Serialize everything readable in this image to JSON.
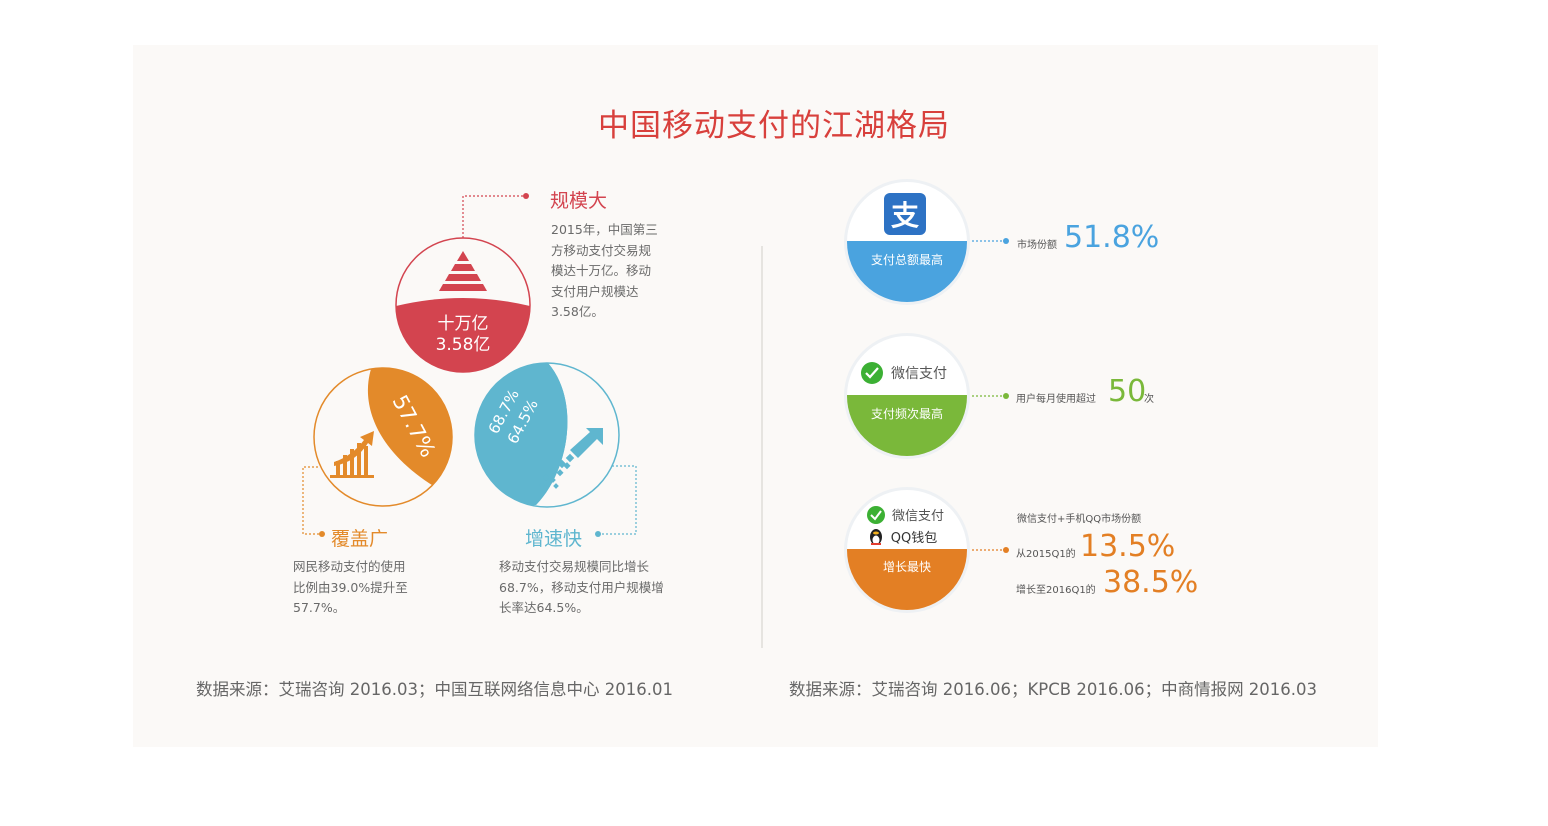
{
  "title": "中国移动支付的江湖格局",
  "left": {
    "scale": {
      "heading": "规模大",
      "desc": [
        "2015年，中国第三",
        "方移动支付交易规",
        "模达十万亿。移动",
        "支付用户规模达",
        "3.58亿。"
      ],
      "circle_line1": "十万亿",
      "circle_line2": "3.58亿"
    },
    "coverage": {
      "heading": "覆盖广",
      "desc": [
        "网民移动支付的使用",
        "比例由39.0%提升至",
        "57.7%。"
      ],
      "circle_value": "57.7%"
    },
    "growth": {
      "heading": "增速快",
      "desc": [
        "移动支付交易规模同比增长",
        "68.7%，移动支付用户规模增",
        "长率达64.5%。"
      ],
      "circle_value1": "68.7%",
      "circle_value2": "64.5%"
    },
    "source": "数据来源：艾瑞咨询 2016.03；中国互联网络信息中心 2016.01"
  },
  "right": {
    "alipay": {
      "band": "支付总额最高",
      "label": "市场份额",
      "value": "51.8%",
      "icon_char": "支"
    },
    "wechat": {
      "brand": "微信支付",
      "band": "支付频次最高",
      "label": "用户每月使用超过",
      "value": "50",
      "unit": "次"
    },
    "combo": {
      "brand1": "微信支付",
      "brand2": "QQ钱包",
      "band": "增长最快",
      "header": "微信支付+手机QQ市场份额",
      "from_label": "从2015Q1的",
      "from_value": "13.5%",
      "to_label": "增长至2016Q1的",
      "to_value": "38.5%"
    },
    "source": "数据来源：艾瑞咨询 2016.06；KPCB  2016.06；中商情报网 2016.03"
  },
  "colors": {
    "title": "#d8403c",
    "red": "#d3444f",
    "orange": "#e38a2a",
    "teal": "#5fb6cf",
    "blue": "#4aa3df",
    "green": "#7ab83a",
    "dark_orange": "#e37f24"
  }
}
